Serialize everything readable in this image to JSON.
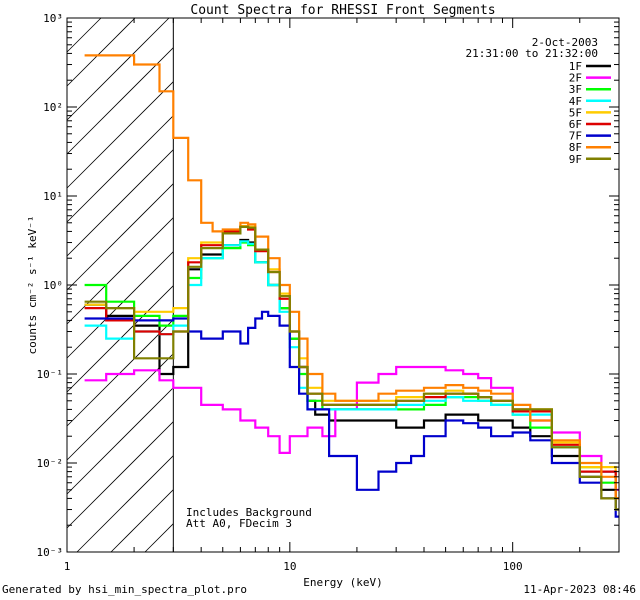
{
  "chart_data": {
    "type": "line",
    "title": "Count Spectra for RHESSI Front Segments",
    "xlabel": "Energy (keV)",
    "ylabel": "counts cm⁻² s⁻¹ keV⁻¹",
    "xscale": "log",
    "yscale": "log",
    "xlim": [
      1,
      300
    ],
    "ylim": [
      0.001,
      1000
    ],
    "x_ticks": [
      {
        "value": 1,
        "label": "1"
      },
      {
        "value": 10,
        "label": "10"
      },
      {
        "value": 100,
        "label": "100"
      }
    ],
    "y_ticks": [
      {
        "value": 0.001,
        "label": "10⁻³"
      },
      {
        "value": 0.01,
        "label": "10⁻²"
      },
      {
        "value": 0.1,
        "label": "10⁻¹"
      },
      {
        "value": 1,
        "label": "10⁰"
      },
      {
        "value": 10,
        "label": "10¹"
      },
      {
        "value": 100,
        "label": "10²"
      },
      {
        "value": 1000,
        "label": "10³"
      }
    ],
    "date": "2-Oct-2003",
    "time_range": "21:31:00 to 21:32:00",
    "annotations": [
      "Includes Background",
      "Att A0, FDecim 3"
    ],
    "excluded_range_kev": [
      1,
      3
    ],
    "series": [
      {
        "name": "1F",
        "color": "#000000",
        "points": [
          [
            1.2,
            0.6
          ],
          [
            1.5,
            0.45
          ],
          [
            2,
            0.35
          ],
          [
            2.6,
            0.1
          ],
          [
            3,
            0.12
          ],
          [
            3.5,
            1.5
          ],
          [
            4,
            2.2
          ],
          [
            5,
            2.8
          ],
          [
            6,
            3.2
          ],
          [
            6.5,
            3.0
          ],
          [
            7,
            1.8
          ],
          [
            8,
            1.0
          ],
          [
            9,
            0.55
          ],
          [
            10,
            0.25
          ],
          [
            11,
            0.12
          ],
          [
            12,
            0.05
          ],
          [
            13,
            0.035
          ],
          [
            15,
            0.03
          ],
          [
            20,
            0.03
          ],
          [
            25,
            0.03
          ],
          [
            30,
            0.025
          ],
          [
            40,
            0.03
          ],
          [
            50,
            0.035
          ],
          [
            60,
            0.035
          ],
          [
            70,
            0.03
          ],
          [
            80,
            0.03
          ],
          [
            100,
            0.025
          ],
          [
            120,
            0.02
          ],
          [
            150,
            0.012
          ],
          [
            200,
            0.007
          ],
          [
            250,
            0.005
          ],
          [
            290,
            0.003
          ]
        ]
      },
      {
        "name": "2F",
        "color": "#ff00ff",
        "points": [
          [
            1.2,
            0.085
          ],
          [
            1.5,
            0.1
          ],
          [
            2,
            0.11
          ],
          [
            2.6,
            0.085
          ],
          [
            3,
            0.07
          ],
          [
            4,
            0.045
          ],
          [
            5,
            0.04
          ],
          [
            6,
            0.03
          ],
          [
            7,
            0.025
          ],
          [
            8,
            0.02
          ],
          [
            9,
            0.013
          ],
          [
            10,
            0.02
          ],
          [
            12,
            0.025
          ],
          [
            14,
            0.02
          ],
          [
            16,
            0.04
          ],
          [
            20,
            0.08
          ],
          [
            25,
            0.1
          ],
          [
            30,
            0.12
          ],
          [
            40,
            0.12
          ],
          [
            50,
            0.11
          ],
          [
            60,
            0.1
          ],
          [
            70,
            0.09
          ],
          [
            80,
            0.07
          ],
          [
            100,
            0.04
          ],
          [
            120,
            0.03
          ],
          [
            150,
            0.022
          ],
          [
            200,
            0.012
          ],
          [
            250,
            0.008
          ],
          [
            290,
            0.005
          ]
        ]
      },
      {
        "name": "3F",
        "color": "#00ff00",
        "points": [
          [
            1.2,
            1.0
          ],
          [
            1.5,
            0.65
          ],
          [
            2,
            0.45
          ],
          [
            2.6,
            0.35
          ],
          [
            3,
            0.45
          ],
          [
            3.5,
            1.2
          ],
          [
            4,
            2.0
          ],
          [
            5,
            2.6
          ],
          [
            6,
            3.0
          ],
          [
            6.5,
            2.8
          ],
          [
            7,
            1.8
          ],
          [
            8,
            1.0
          ],
          [
            9,
            0.55
          ],
          [
            10,
            0.25
          ],
          [
            11,
            0.1
          ],
          [
            12,
            0.05
          ],
          [
            14,
            0.04
          ],
          [
            20,
            0.04
          ],
          [
            30,
            0.04
          ],
          [
            40,
            0.045
          ],
          [
            50,
            0.055
          ],
          [
            60,
            0.055
          ],
          [
            70,
            0.05
          ],
          [
            80,
            0.045
          ],
          [
            100,
            0.035
          ],
          [
            120,
            0.025
          ],
          [
            150,
            0.015
          ],
          [
            200,
            0.009
          ],
          [
            250,
            0.006
          ],
          [
            290,
            0.004
          ]
        ]
      },
      {
        "name": "4F",
        "color": "#00ffff",
        "points": [
          [
            1.2,
            0.35
          ],
          [
            1.5,
            0.25
          ],
          [
            2,
            0.3
          ],
          [
            2.6,
            0.28
          ],
          [
            3,
            0.35
          ],
          [
            3.5,
            1.0
          ],
          [
            4,
            2.0
          ],
          [
            5,
            2.8
          ],
          [
            6,
            3.1
          ],
          [
            6.5,
            2.9
          ],
          [
            7,
            1.8
          ],
          [
            8,
            1.0
          ],
          [
            9,
            0.5
          ],
          [
            10,
            0.2
          ],
          [
            11,
            0.07
          ],
          [
            12,
            0.04
          ],
          [
            15,
            0.04
          ],
          [
            20,
            0.04
          ],
          [
            30,
            0.045
          ],
          [
            40,
            0.05
          ],
          [
            50,
            0.055
          ],
          [
            60,
            0.05
          ],
          [
            70,
            0.05
          ],
          [
            80,
            0.045
          ],
          [
            100,
            0.035
          ],
          [
            150,
            0.015
          ],
          [
            200,
            0.008
          ],
          [
            290,
            0.004
          ]
        ]
      },
      {
        "name": "5F",
        "color": "#ffcc00",
        "points": [
          [
            1.2,
            0.6
          ],
          [
            1.5,
            0.55
          ],
          [
            2,
            0.5
          ],
          [
            2.6,
            0.5
          ],
          [
            3,
            0.55
          ],
          [
            3.5,
            2.0
          ],
          [
            4,
            3.0
          ],
          [
            5,
            4.0
          ],
          [
            6,
            4.6
          ],
          [
            6.5,
            4.5
          ],
          [
            7,
            2.5
          ],
          [
            8,
            1.5
          ],
          [
            9,
            0.8
          ],
          [
            10,
            0.3
          ],
          [
            11,
            0.15
          ],
          [
            12,
            0.07
          ],
          [
            14,
            0.05
          ],
          [
            20,
            0.05
          ],
          [
            30,
            0.055
          ],
          [
            40,
            0.06
          ],
          [
            50,
            0.065
          ],
          [
            60,
            0.06
          ],
          [
            70,
            0.055
          ],
          [
            80,
            0.05
          ],
          [
            100,
            0.04
          ],
          [
            150,
            0.017
          ],
          [
            200,
            0.009
          ],
          [
            290,
            0.004
          ]
        ]
      },
      {
        "name": "6F",
        "color": "#dd0000",
        "points": [
          [
            1.2,
            0.55
          ],
          [
            1.5,
            0.4
          ],
          [
            2,
            0.3
          ],
          [
            2.6,
            0.28
          ],
          [
            3,
            0.3
          ],
          [
            3.5,
            1.8
          ],
          [
            4,
            2.8
          ],
          [
            5,
            4.0
          ],
          [
            6,
            4.5
          ],
          [
            6.5,
            4.2
          ],
          [
            7,
            2.4
          ],
          [
            8,
            1.4
          ],
          [
            9,
            0.7
          ],
          [
            10,
            0.3
          ],
          [
            11,
            0.12
          ],
          [
            12,
            0.06
          ],
          [
            14,
            0.045
          ],
          [
            20,
            0.045
          ],
          [
            30,
            0.05
          ],
          [
            40,
            0.055
          ],
          [
            50,
            0.06
          ],
          [
            60,
            0.06
          ],
          [
            70,
            0.055
          ],
          [
            80,
            0.05
          ],
          [
            100,
            0.038
          ],
          [
            150,
            0.016
          ],
          [
            200,
            0.008
          ],
          [
            290,
            0.004
          ]
        ]
      },
      {
        "name": "7F",
        "color": "#0000cc",
        "points": [
          [
            1.2,
            0.42
          ],
          [
            1.5,
            0.42
          ],
          [
            2,
            0.4
          ],
          [
            2.6,
            0.4
          ],
          [
            3,
            0.42
          ],
          [
            3.5,
            0.3
          ],
          [
            4,
            0.25
          ],
          [
            5,
            0.3
          ],
          [
            6,
            0.22
          ],
          [
            6.5,
            0.33
          ],
          [
            7,
            0.42
          ],
          [
            7.5,
            0.5
          ],
          [
            8,
            0.45
          ],
          [
            9,
            0.35
          ],
          [
            10,
            0.12
          ],
          [
            11,
            0.06
          ],
          [
            12,
            0.04
          ],
          [
            15,
            0.012
          ],
          [
            20,
            0.005
          ],
          [
            25,
            0.008
          ],
          [
            30,
            0.01
          ],
          [
            35,
            0.012
          ],
          [
            40,
            0.02
          ],
          [
            50,
            0.03
          ],
          [
            60,
            0.028
          ],
          [
            70,
            0.025
          ],
          [
            80,
            0.02
          ],
          [
            100,
            0.022
          ],
          [
            120,
            0.018
          ],
          [
            150,
            0.01
          ],
          [
            200,
            0.006
          ],
          [
            250,
            0.004
          ],
          [
            290,
            0.0025
          ]
        ]
      },
      {
        "name": "8F",
        "color": "#ff8000",
        "points": [
          [
            1.2,
            380
          ],
          [
            1.5,
            380
          ],
          [
            2,
            300
          ],
          [
            2.6,
            150
          ],
          [
            3,
            45
          ],
          [
            3.5,
            15
          ],
          [
            4,
            5
          ],
          [
            4.5,
            4
          ],
          [
            5,
            4.2
          ],
          [
            6,
            5
          ],
          [
            6.5,
            4.8
          ],
          [
            7,
            3.5
          ],
          [
            8,
            2.0
          ],
          [
            9,
            1.0
          ],
          [
            10,
            0.5
          ],
          [
            11,
            0.25
          ],
          [
            12,
            0.1
          ],
          [
            14,
            0.06
          ],
          [
            16,
            0.05
          ],
          [
            20,
            0.05
          ],
          [
            25,
            0.06
          ],
          [
            30,
            0.065
          ],
          [
            40,
            0.07
          ],
          [
            50,
            0.075
          ],
          [
            60,
            0.07
          ],
          [
            70,
            0.065
          ],
          [
            80,
            0.06
          ],
          [
            100,
            0.045
          ],
          [
            120,
            0.03
          ],
          [
            150,
            0.018
          ],
          [
            200,
            0.01
          ],
          [
            250,
            0.007
          ],
          [
            290,
            0.004
          ]
        ]
      },
      {
        "name": "9F",
        "color": "#808000",
        "points": [
          [
            1.2,
            0.65
          ],
          [
            1.5,
            0.55
          ],
          [
            2,
            0.15
          ],
          [
            2.6,
            0.15
          ],
          [
            3,
            0.3
          ],
          [
            3.5,
            1.6
          ],
          [
            4,
            2.6
          ],
          [
            5,
            3.8
          ],
          [
            6,
            4.5
          ],
          [
            6.5,
            4.4
          ],
          [
            7,
            2.5
          ],
          [
            8,
            1.4
          ],
          [
            9,
            0.75
          ],
          [
            10,
            0.3
          ],
          [
            11,
            0.12
          ],
          [
            12,
            0.06
          ],
          [
            14,
            0.045
          ],
          [
            20,
            0.045
          ],
          [
            30,
            0.05
          ],
          [
            40,
            0.06
          ],
          [
            50,
            0.06
          ],
          [
            60,
            0.06
          ],
          [
            70,
            0.055
          ],
          [
            80,
            0.05
          ],
          [
            100,
            0.04
          ],
          [
            150,
            0.015
          ],
          [
            200,
            0.007
          ],
          [
            250,
            0.004
          ],
          [
            290,
            0.003
          ]
        ]
      }
    ]
  },
  "footer": {
    "generated_by": "Generated by hsi_min_spectra_plot.pro",
    "timestamp": "11-Apr-2023 08:46"
  }
}
